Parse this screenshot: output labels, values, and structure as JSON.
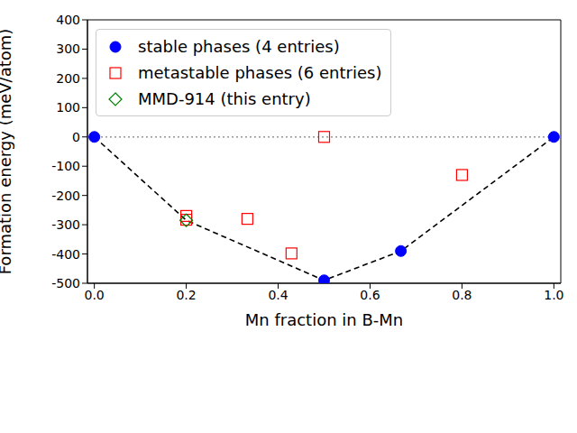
{
  "chart_data": {
    "type": "scatter",
    "x_label": "Mn fraction in B-Mn",
    "y_label": "Formation energy (meV/atom)",
    "xlim": [
      -0.015,
      1.015
    ],
    "ylim": [
      -500,
      400
    ],
    "xticks": [
      {
        "value": 0,
        "label": "0.0"
      },
      0.2,
      0.4,
      0.6,
      0.8,
      {
        "value": 1,
        "label": "1.0"
      }
    ],
    "yticks": [
      -500,
      -400,
      -300,
      -200,
      -100,
      0,
      100,
      200,
      300,
      400
    ],
    "grid": false,
    "legend": "upper left",
    "series": [
      {
        "name": "stable phases (4 entries)",
        "color": "#0000ff",
        "marker": "circle",
        "x": [
          0,
          0.5,
          0.667,
          1
        ],
        "values": [
          0,
          -490,
          -390,
          0
        ]
      },
      {
        "name": "metastable phases (6 entries)",
        "color": "#ff0000",
        "marker": "square",
        "x": [
          0.2,
          0.2,
          0.333,
          0.429,
          0.5,
          0.8
        ],
        "values": [
          -270,
          -283,
          -280,
          -398,
          0,
          -130
        ]
      },
      {
        "name": "MMD-914 (this entry)",
        "color": "#008000",
        "marker": "diamond",
        "x": [
          0.2
        ],
        "values": [
          -285
        ]
      }
    ],
    "hull": {
      "color": "#000000",
      "line_style": "dashed",
      "x": [
        0,
        0.2,
        0.5,
        0.667,
        1
      ],
      "values": [
        0,
        -285,
        -490,
        -390,
        0
      ]
    },
    "reference_line": {
      "y": 0,
      "color": "#808080",
      "line_style": "dotted"
    }
  }
}
